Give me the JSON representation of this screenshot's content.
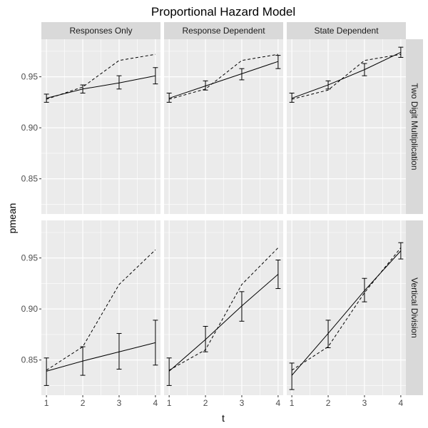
{
  "chart_data": {
    "type": "line",
    "title": "Proportional Hazard Model",
    "xlabel": "t",
    "ylabel": "pmean",
    "x": [
      1,
      2,
      3,
      4
    ],
    "xlim": [
      0.86,
      4.14
    ],
    "ylim": [
      0.8155,
      0.9868
    ],
    "x_ticks": [
      "1",
      "2",
      "3",
      "4"
    ],
    "y_ticks": [
      "0.85",
      "0.90",
      "0.95"
    ],
    "columns": [
      "Responses Only",
      "Response Dependent",
      "State Dependent"
    ],
    "rows": [
      "Two Digit Multiplication",
      "Vertical Division"
    ],
    "grid": true,
    "legend": "none",
    "colors": {
      "panel_bg": "#ebebeb",
      "grid": "#ffffff",
      "strip_bg": "#d9d9d9",
      "line": "#000000"
    },
    "panels": [
      {
        "row": "Two Digit Multiplication",
        "column": "Responses Only",
        "series": [
          {
            "style": "solid",
            "values": [
              0.929,
              0.938,
              0.944,
              0.951
            ]
          },
          {
            "style": "dashed",
            "values": [
              0.928,
              0.94,
              0.966,
              0.972
            ]
          }
        ],
        "error_bars": [
          [
            0.925,
            0.933
          ],
          [
            0.934,
            0.942
          ],
          [
            0.938,
            0.951
          ],
          [
            0.943,
            0.959
          ]
        ]
      },
      {
        "row": "Two Digit Multiplication",
        "column": "Response Dependent",
        "series": [
          {
            "style": "solid",
            "values": [
              0.929,
              0.941,
              0.953,
              0.965
            ]
          },
          {
            "style": "dashed",
            "values": [
              0.928,
              0.938,
              0.966,
              0.972
            ]
          }
        ],
        "error_bars": [
          [
            0.925,
            0.934
          ],
          [
            0.937,
            0.946
          ],
          [
            0.947,
            0.958
          ],
          [
            0.958,
            0.971
          ]
        ]
      },
      {
        "row": "Two Digit Multiplication",
        "column": "State Dependent",
        "series": [
          {
            "style": "solid",
            "values": [
              0.929,
              0.942,
              0.957,
              0.974
            ]
          },
          {
            "style": "dashed",
            "values": [
              0.928,
              0.937,
              0.966,
              0.972
            ]
          }
        ],
        "error_bars": [
          [
            0.925,
            0.934
          ],
          [
            0.938,
            0.946
          ],
          [
            0.951,
            0.963
          ],
          [
            0.969,
            0.979
          ]
        ]
      },
      {
        "row": "Vertical Division",
        "column": "Responses Only",
        "series": [
          {
            "style": "solid",
            "values": [
              0.839,
              0.849,
              0.858,
              0.867
            ]
          },
          {
            "style": "dashed",
            "values": [
              0.84,
              0.863,
              0.924,
              0.958
            ]
          }
        ],
        "error_bars": [
          [
            0.825,
            0.852
          ],
          [
            0.835,
            0.863
          ],
          [
            0.841,
            0.876
          ],
          [
            0.845,
            0.889
          ]
        ]
      },
      {
        "row": "Vertical Division",
        "column": "Response Dependent",
        "series": [
          {
            "style": "solid",
            "values": [
              0.839,
              0.87,
              0.903,
              0.934
            ]
          },
          {
            "style": "dashed",
            "values": [
              0.84,
              0.86,
              0.924,
              0.96
            ]
          }
        ],
        "error_bars": [
          [
            0.825,
            0.852
          ],
          [
            0.858,
            0.883
          ],
          [
            0.888,
            0.917
          ],
          [
            0.92,
            0.948
          ]
        ]
      },
      {
        "row": "Vertical Division",
        "column": "State Dependent",
        "series": [
          {
            "style": "solid",
            "values": [
              0.835,
              0.876,
              0.918,
              0.957
            ]
          },
          {
            "style": "dashed",
            "values": [
              0.84,
              0.863,
              0.916,
              0.96
            ]
          }
        ],
        "error_bars": [
          [
            0.821,
            0.847
          ],
          [
            0.862,
            0.889
          ],
          [
            0.907,
            0.93
          ],
          [
            0.949,
            0.965
          ]
        ]
      }
    ]
  }
}
